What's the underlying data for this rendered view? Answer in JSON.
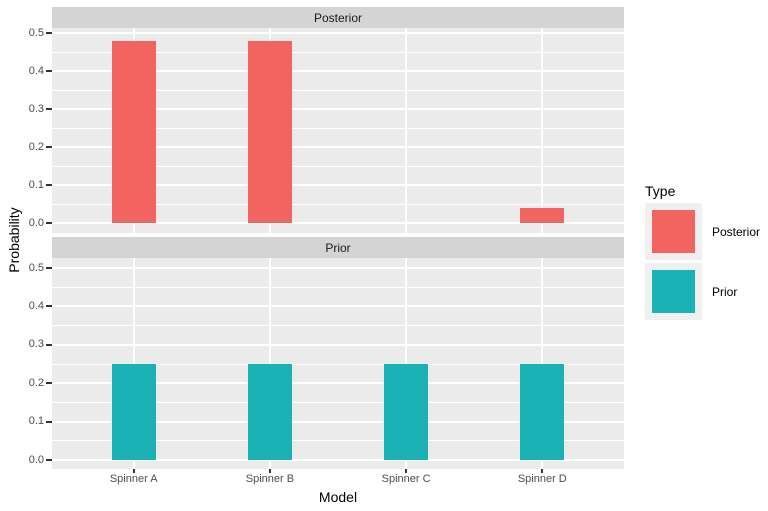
{
  "chart_data": {
    "type": "bar",
    "faceted": true,
    "xlabel": "Model",
    "ylabel": "Probability",
    "categories": [
      "Spinner A",
      "Spinner B",
      "Spinner C",
      "Spinner D"
    ],
    "yticks": [
      0,
      0.1,
      0.2,
      0.3,
      0.4,
      0.5
    ],
    "ytick_labels": [
      "0.0",
      "0.1",
      "0.2",
      "0.3",
      "0.4",
      "0.5"
    ],
    "ylim": [
      0,
      0.5
    ],
    "grid": {
      "horizontal": "white major lines at 0.1 steps with minor lines at 0.05 steps",
      "vertical": "white major lines at each category center"
    },
    "panel_bg": "#EBEBEB",
    "strip_bg": "#D4D4D4",
    "facets": [
      {
        "label": "Posterior",
        "color": "#F26460",
        "values": [
          0.48,
          0.48,
          0,
          0.04
        ]
      },
      {
        "label": "Prior",
        "color": "#1BB2B6",
        "values": [
          0.25,
          0.25,
          0.25,
          0.25
        ]
      }
    ],
    "legend": {
      "title": "Type",
      "position": "right",
      "entries": [
        {
          "label": "Posterior",
          "color": "#F26460"
        },
        {
          "label": "Prior",
          "color": "#1BB2B6"
        }
      ]
    }
  }
}
